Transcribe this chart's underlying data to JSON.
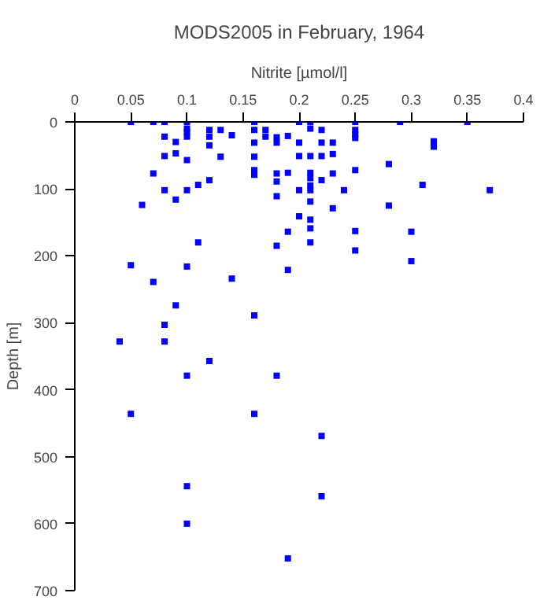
{
  "chart_data": {
    "type": "scatter",
    "title": "MODS2005 in February, 1964",
    "xlabel": "Nitrite [µmol/l]",
    "ylabel": "Depth [m]",
    "xlim": [
      0,
      0.4
    ],
    "xticks": [
      0,
      0.05,
      0.1,
      0.15,
      0.2,
      0.25,
      0.3,
      0.35,
      0.4
    ],
    "ylim": [
      700,
      0
    ],
    "yticks": [
      0,
      100,
      200,
      300,
      400,
      500,
      600,
      700
    ],
    "marker": "square",
    "grid": false,
    "series": [
      {
        "color": "#0000ff",
        "x": [
          0.05,
          0.07,
          0.08,
          0.1,
          0.16,
          0.2,
          0.21,
          0.25,
          0.29,
          0.35,
          0.1,
          0.1,
          0.12,
          0.13,
          0.16,
          0.17,
          0.08,
          0.1,
          0.12,
          0.14,
          0.17,
          0.18,
          0.09,
          0.16,
          0.18,
          0.12,
          0.09,
          0.13,
          0.08,
          0.16,
          0.1,
          0.07,
          0.16,
          0.16,
          0.18,
          0.18,
          0.18,
          0.12,
          0.11,
          0.08,
          0.1,
          0.09,
          0.06,
          0.11,
          0.18,
          0.05,
          0.1,
          0.07,
          0.14,
          0.09,
          0.21,
          0.22,
          0.25,
          0.19,
          0.25,
          0.25,
          0.2,
          0.22,
          0.23,
          0.32,
          0.32,
          0.23,
          0.2,
          0.21,
          0.22,
          0.28,
          0.19,
          0.21,
          0.21,
          0.23,
          0.25,
          0.22,
          0.21,
          0.21,
          0.2,
          0.24,
          0.31,
          0.37,
          0.21,
          0.23,
          0.28,
          0.2,
          0.21,
          0.21,
          0.19,
          0.25,
          0.3,
          0.21,
          0.25,
          0.3,
          0.19,
          0.16,
          0.08,
          0.04,
          0.08,
          0.12,
          0.1,
          0.18,
          0.05,
          0.16,
          0.22,
          0.1,
          0.22,
          0.1,
          0.19
        ],
        "values": [
          0,
          0,
          0,
          0,
          0,
          0,
          0,
          0,
          0,
          0,
          10,
          15,
          12,
          12,
          12,
          12,
          22,
          22,
          22,
          20,
          22,
          23,
          30,
          31,
          31,
          35,
          47,
          52,
          51,
          52,
          57,
          77,
          72,
          79,
          77,
          89,
          111,
          87,
          94,
          102,
          102,
          116,
          124,
          180,
          185,
          214,
          216,
          239,
          234,
          274,
          10,
          12,
          12,
          21,
          19,
          24,
          31,
          31,
          31,
          29,
          37,
          48,
          51,
          51,
          51,
          63,
          76,
          76,
          84,
          77,
          72,
          87,
          95,
          102,
          102,
          102,
          94,
          102,
          119,
          129,
          125,
          141,
          146,
          159,
          164,
          163,
          164,
          180,
          192,
          208,
          221,
          289,
          303,
          328,
          328,
          357,
          379,
          379,
          436,
          436,
          469,
          544,
          559,
          600,
          652
        ]
      }
    ]
  }
}
